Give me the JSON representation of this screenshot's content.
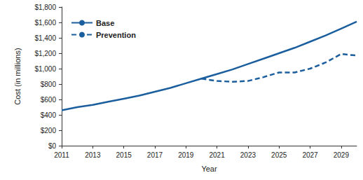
{
  "chart_data": {
    "type": "line",
    "x_label": "Year",
    "y_label": "Cost (in millions)",
    "x": [
      2011,
      2012,
      2013,
      2014,
      2015,
      2016,
      2017,
      2018,
      2019,
      2020,
      2021,
      2022,
      2023,
      2024,
      2025,
      2026,
      2027,
      2028,
      2029,
      2030
    ],
    "series": [
      {
        "name": "Base",
        "color": "#1b5e9e",
        "line_style": "solid",
        "values": [
          460,
          500,
          530,
          570,
          610,
          650,
          700,
          750,
          810,
          870,
          930,
          990,
          1060,
          1130,
          1200,
          1270,
          1350,
          1430,
          1520,
          1610
        ]
      },
      {
        "name": "Prevention",
        "color": "#1b5e9e",
        "line_style": "dashed",
        "values": [
          null,
          null,
          null,
          null,
          null,
          null,
          null,
          null,
          null,
          870,
          840,
          830,
          840,
          890,
          950,
          950,
          1000,
          1080,
          1190,
          1170
        ]
      }
    ],
    "xlim": [
      2011,
      2030
    ],
    "xticks": [
      2011,
      2013,
      2015,
      2017,
      2019,
      2021,
      2023,
      2025,
      2027,
      2029
    ],
    "ylim": [
      0,
      1800
    ],
    "yticks": [
      {
        "value": 0,
        "label": "$0"
      },
      {
        "value": 200,
        "label": "$200"
      },
      {
        "value": 400,
        "label": "$400"
      },
      {
        "value": 600,
        "label": "$600"
      },
      {
        "value": 800,
        "label": "$800"
      },
      {
        "value": 1000,
        "label": "$1,000"
      },
      {
        "value": 1200,
        "label": "$1,200"
      },
      {
        "value": 1400,
        "label": "$1,400"
      },
      {
        "value": 1600,
        "label": "$1,600"
      },
      {
        "value": 1800,
        "label": "$1,800"
      }
    ],
    "grid": false,
    "legend": "upper left"
  }
}
